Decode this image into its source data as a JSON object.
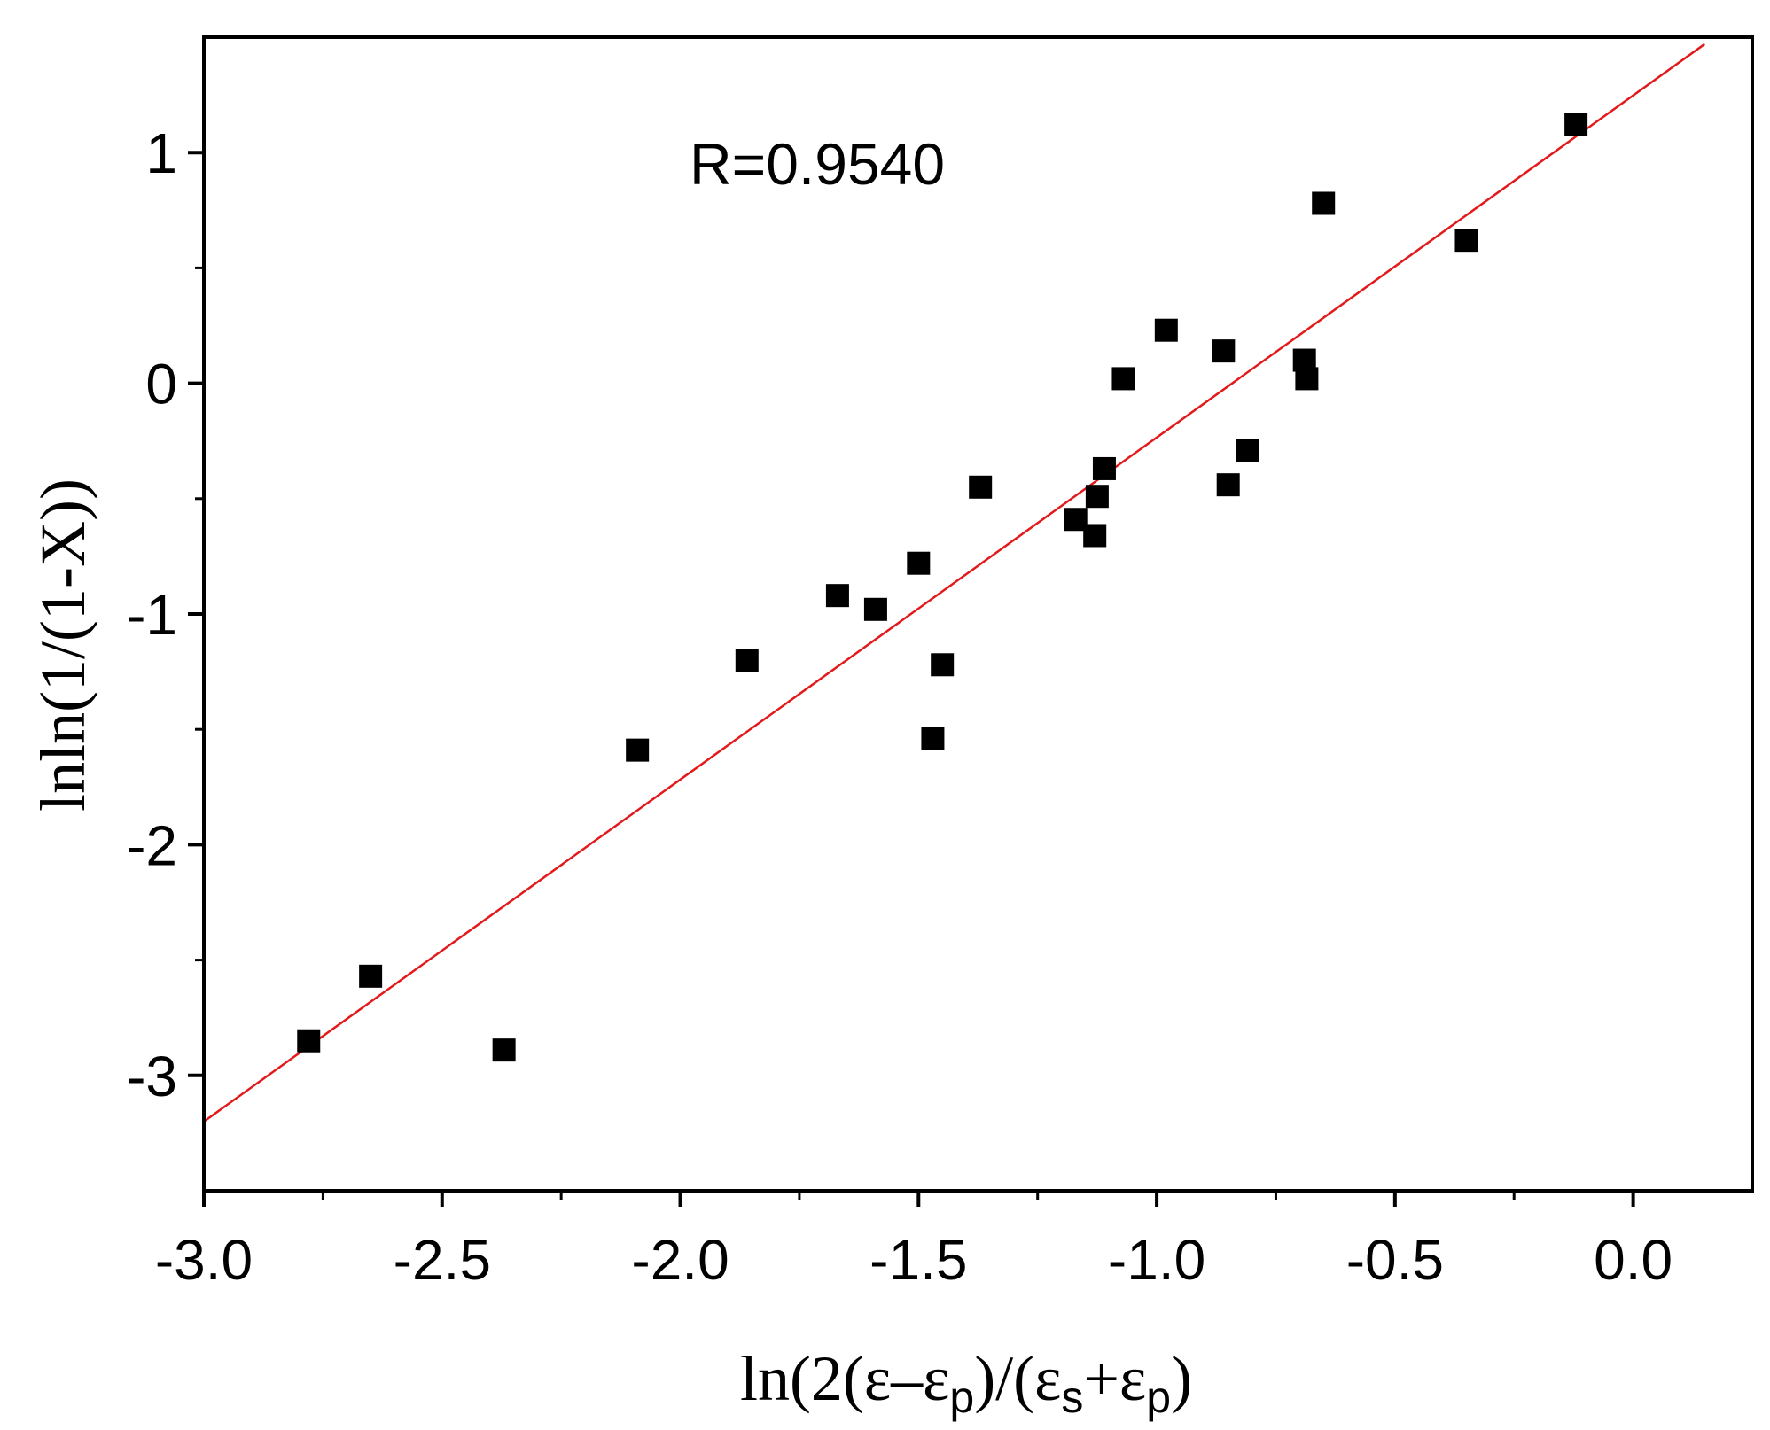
{
  "chart_data": {
    "type": "scatter",
    "xlabel": "ln(2(ε–εp)/(εs+εp)",
    "xlabel_parts": {
      "p1": "ln(2(ε–ε",
      "sub1": "p",
      "p2": ")/(ε",
      "sub2": "s",
      "p3": "+ε",
      "sub3": "p",
      "p4": ")"
    },
    "ylabel": "lnln(1/(1-X))",
    "xlim": [
      -3.0,
      0.25
    ],
    "ylim": [
      -3.5,
      1.5
    ],
    "x_ticks": [
      -3.0,
      -2.5,
      -2.0,
      -1.5,
      -1.0,
      -0.5,
      0.0
    ],
    "x_tick_labels": [
      "-3.0",
      "-2.5",
      "-2.0",
      "-1.5",
      "-1.0",
      "-0.5",
      "0.0"
    ],
    "x_minor_ticks": [
      -2.75,
      -2.25,
      -1.75,
      -1.25,
      -0.75,
      -0.25
    ],
    "y_ticks": [
      -3,
      -2,
      -1,
      0,
      1
    ],
    "y_tick_labels": [
      "-3",
      "-2",
      "-1",
      "0",
      "1"
    ],
    "y_minor_ticks": [
      -2.5,
      -1.5,
      -0.5,
      0.5
    ],
    "annotation": "R=0.9540",
    "grid": false,
    "series": [
      {
        "name": "data",
        "marker": "square",
        "color": "#000000",
        "x": [
          -2.78,
          -2.65,
          -2.37,
          -2.09,
          -1.86,
          -1.67,
          -1.59,
          -1.5,
          -1.47,
          -1.45,
          -1.37,
          -1.17,
          -1.13,
          -1.125,
          -1.11,
          -1.07,
          -0.98,
          -0.86,
          -0.85,
          -0.81,
          -0.69,
          -0.685,
          -0.65,
          -0.35,
          -0.12
        ],
        "y": [
          -2.85,
          -2.57,
          -2.89,
          -1.59,
          -1.2,
          -0.92,
          -0.98,
          -0.78,
          -1.54,
          -1.22,
          -0.45,
          -0.59,
          -0.66,
          -0.49,
          -0.37,
          0.02,
          0.23,
          0.14,
          -0.44,
          -0.29,
          0.1,
          0.02,
          0.78,
          0.62,
          1.12
        ]
      }
    ],
    "fit_line": {
      "name": "linear fit",
      "color": "#e31a1c",
      "x": [
        -3.0,
        0.15
      ],
      "y": [
        -3.2,
        1.47
      ]
    }
  }
}
